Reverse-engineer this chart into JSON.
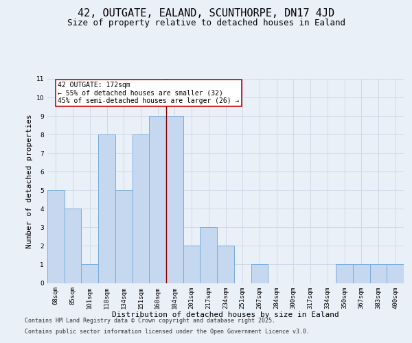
{
  "title1": "42, OUTGATE, EALAND, SCUNTHORPE, DN17 4JD",
  "title2": "Size of property relative to detached houses in Ealand",
  "xlabel": "Distribution of detached houses by size in Ealand",
  "ylabel": "Number of detached properties",
  "categories": [
    "68sqm",
    "85sqm",
    "101sqm",
    "118sqm",
    "134sqm",
    "151sqm",
    "168sqm",
    "184sqm",
    "201sqm",
    "217sqm",
    "234sqm",
    "251sqm",
    "267sqm",
    "284sqm",
    "300sqm",
    "317sqm",
    "334sqm",
    "350sqm",
    "367sqm",
    "383sqm",
    "400sqm"
  ],
  "values": [
    5,
    4,
    1,
    8,
    5,
    8,
    9,
    9,
    2,
    3,
    2,
    0,
    1,
    0,
    0,
    0,
    0,
    1,
    1,
    1,
    1
  ],
  "bar_color": "#c5d8f0",
  "bar_edge_color": "#7aabdb",
  "grid_color": "#d0d8e8",
  "background_color": "#eaf0f8",
  "vline_x": 6.5,
  "vline_color": "#8b0000",
  "annotation_text": "42 OUTGATE: 172sqm\n← 55% of detached houses are smaller (32)\n45% of semi-detached houses are larger (26) →",
  "annotation_box_color": "#ffffff",
  "annotation_box_edge": "#cc0000",
  "ylim": [
    0,
    11
  ],
  "yticks": [
    0,
    1,
    2,
    3,
    4,
    5,
    6,
    7,
    8,
    9,
    10,
    11
  ],
  "footer1": "Contains HM Land Registry data © Crown copyright and database right 2025.",
  "footer2": "Contains public sector information licensed under the Open Government Licence v3.0.",
  "title1_fontsize": 11,
  "title2_fontsize": 9,
  "tick_fontsize": 6.5,
  "xlabel_fontsize": 8,
  "ylabel_fontsize": 8,
  "footer_fontsize": 6,
  "annotation_fontsize": 7
}
